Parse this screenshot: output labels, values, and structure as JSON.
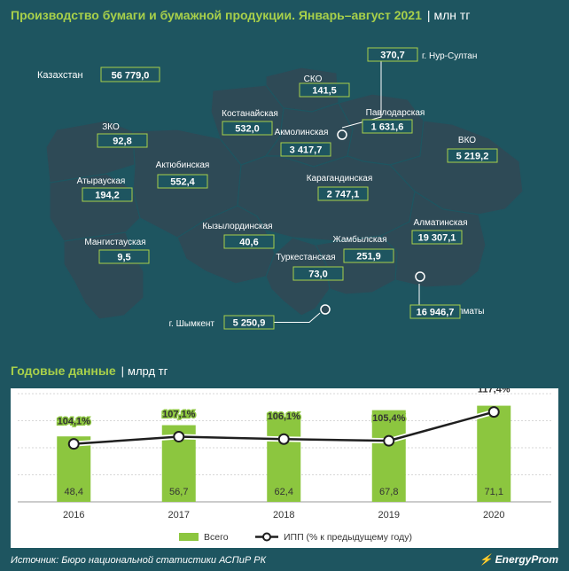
{
  "header": {
    "title": "Производство бумаги и бумажной продукции. Январь–август 2021",
    "separator": "|",
    "unit": "млн тг"
  },
  "map": {
    "total": {
      "label": "Казахстан",
      "value": "56 779,0"
    },
    "regions": [
      {
        "id": "sko",
        "name": "СКО",
        "value": "141,5"
      },
      {
        "id": "nur-sultan",
        "name": "г. Нур-Султан",
        "value": "370,7"
      },
      {
        "id": "kostanay",
        "name": "Костанайская",
        "value": "532,0"
      },
      {
        "id": "akmola",
        "name": "Акмолинская",
        "value": "3 417,7"
      },
      {
        "id": "pavlodar",
        "name": "Павлодарская",
        "value": "1 631,6"
      },
      {
        "id": "zko",
        "name": "ЗКО",
        "value": "92,8"
      },
      {
        "id": "aktobe",
        "name": "Актюбинская",
        "value": "552,4"
      },
      {
        "id": "vko",
        "name": "ВКО",
        "value": "5 219,2"
      },
      {
        "id": "atyrau",
        "name": "Атырауская",
        "value": "194,2"
      },
      {
        "id": "karaganda",
        "name": "Карагандинская",
        "value": "2 747,1"
      },
      {
        "id": "kyzylorda",
        "name": "Кызылординская",
        "value": "40,6"
      },
      {
        "id": "almaty-obl",
        "name": "Алматинская",
        "value": "19 307,1"
      },
      {
        "id": "mangistau",
        "name": "Мангистауская",
        "value": "9,5"
      },
      {
        "id": "zhambyl",
        "name": "Жамбылская",
        "value": "251,9"
      },
      {
        "id": "turkestan",
        "name": "Туркестанская",
        "value": "73,0"
      },
      {
        "id": "almaty",
        "name": "г. Алматы",
        "value": "16 946,7"
      },
      {
        "id": "shymkent",
        "name": "г. Шымкент",
        "value": "5 250,9"
      }
    ]
  },
  "annual": {
    "title": "Годовые данные",
    "separator": "|",
    "unit": "млрд тг"
  },
  "chart_data": {
    "type": "bar",
    "categories": [
      "2016",
      "2017",
      "2018",
      "2019",
      "2020"
    ],
    "series": [
      {
        "name": "Всего",
        "kind": "bar",
        "values": [
          48.4,
          56.7,
          62.4,
          67.8,
          71.1
        ],
        "labels": [
          "48,4",
          "56,7",
          "62,4",
          "67,8",
          "71,1"
        ]
      },
      {
        "name": "ИПП (% к предыдущему году)",
        "kind": "line",
        "values": [
          104.1,
          107.1,
          106.1,
          105.4,
          117.4
        ],
        "labels": [
          "104,1%",
          "107,1%",
          "106,1%",
          "105,4%",
          "117,4%"
        ]
      }
    ],
    "ylim_bars": [
      0,
      80
    ],
    "ylim_line": [
      80,
      125
    ],
    "grid": true,
    "legend": "bottom"
  },
  "footer": {
    "source": "Источник: Бюро национальной статистики АСПиР РК",
    "brand": "EnergyProm"
  },
  "colors": {
    "background": "#1e5560",
    "map_fill": "#2e4a56",
    "accent": "#a8d04a",
    "bar": "#8cc63f",
    "line": "#ffffff"
  }
}
